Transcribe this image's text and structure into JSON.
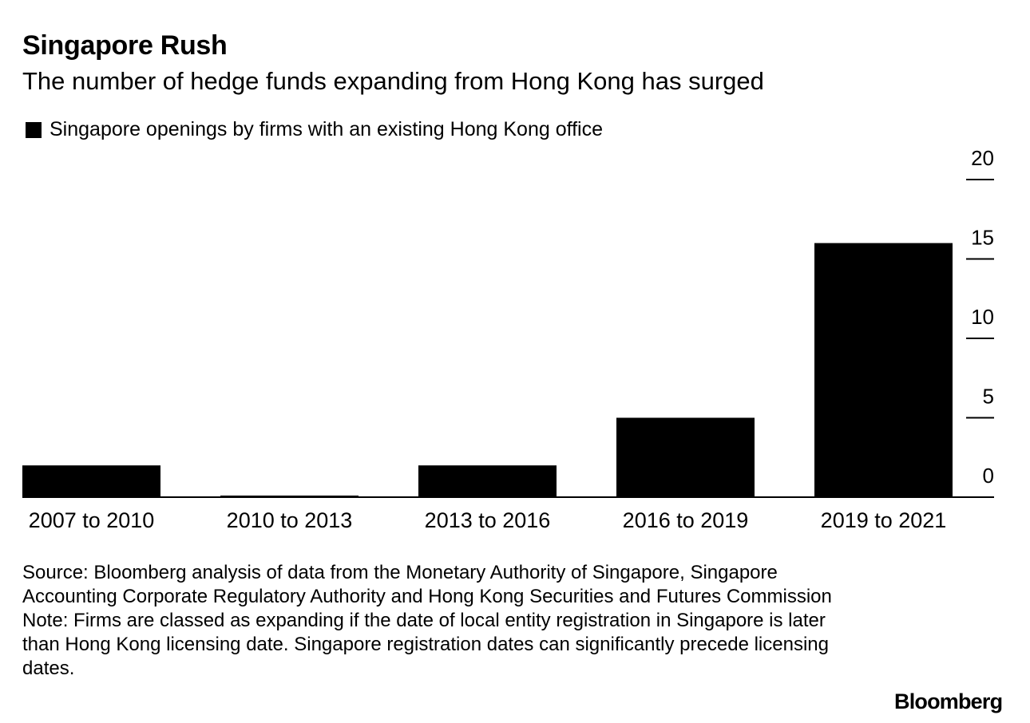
{
  "header": {
    "title": "Singapore Rush",
    "subtitle": "The number of hedge funds expanding from Hong Kong has surged"
  },
  "legend": {
    "label": "Singapore openings by firms with an existing Hong Kong office"
  },
  "chart_data": {
    "type": "bar",
    "categories": [
      "2007 to 2010",
      "2010 to 2013",
      "2013 to 2016",
      "2016 to 2019",
      "2019 to 2021"
    ],
    "series": [
      {
        "name": "Singapore openings by firms with an existing Hong Kong office",
        "values": [
          2,
          0,
          2,
          5,
          16
        ]
      }
    ],
    "ylim": [
      0,
      20
    ],
    "yticks": [
      "0",
      "5",
      "10",
      "15",
      "20"
    ],
    "yaxis_position": "right",
    "grid": false,
    "bar_color": "#000000"
  },
  "footer": {
    "source": "Source: Bloomberg analysis of data from the Monetary Authority of Singapore, Singapore Accounting Corporate Regulatory Authority and Hong Kong Securities and Futures Commission",
    "note": "Note: Firms are classed as expanding if the date of local entity registration in Singapore is later than Hong Kong licensing date. Singapore registration dates can significantly precede licensing dates.",
    "brand": "Bloomberg"
  }
}
